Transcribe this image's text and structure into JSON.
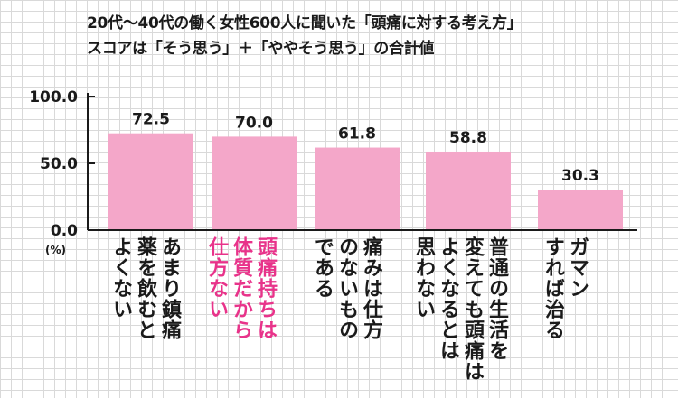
{
  "title_lines": [
    "20代～40代の働く女性600人に聞いた「頭痛に対する考え方」",
    "スコアは「そう思う」＋「ややそう思う」の合計値"
  ],
  "unit_label": "(%)",
  "colors": {
    "bar": "#f4a7c9",
    "highlight_text": "#e8338a",
    "text": "#1a1a1a",
    "grid": "#d9d9d9"
  },
  "chart_data": {
    "type": "bar",
    "title": "20代～40代の働く女性600人に聞いた「頭痛に対する考え方」",
    "subtitle": "スコアは「そう思う」＋「ややそう思う」の合計値",
    "ylabel": "(%)",
    "ylim": [
      0,
      100
    ],
    "yticks": [
      "0.0",
      "50.0",
      "100.0"
    ],
    "values": [
      72.5,
      70.0,
      61.8,
      58.8,
      30.3
    ],
    "value_labels": [
      "72.5",
      "70.0",
      "61.8",
      "58.8",
      "30.3"
    ],
    "categories": [
      {
        "lines": [
          "あまり鎮痛",
          "薬を飲むと",
          "よくない"
        ],
        "highlight": false
      },
      {
        "lines": [
          "頭痛持ちは",
          "体質だから",
          "仕方ない"
        ],
        "highlight": true
      },
      {
        "lines": [
          "痛みは仕方",
          "のないもの",
          "である"
        ],
        "highlight": false
      },
      {
        "lines": [
          "普通の生活を",
          "変えても頭痛は",
          "よくなるとは",
          "思わない"
        ],
        "highlight": false
      },
      {
        "lines": [
          "ガマン",
          "すれば治る"
        ],
        "highlight": false
      }
    ]
  }
}
